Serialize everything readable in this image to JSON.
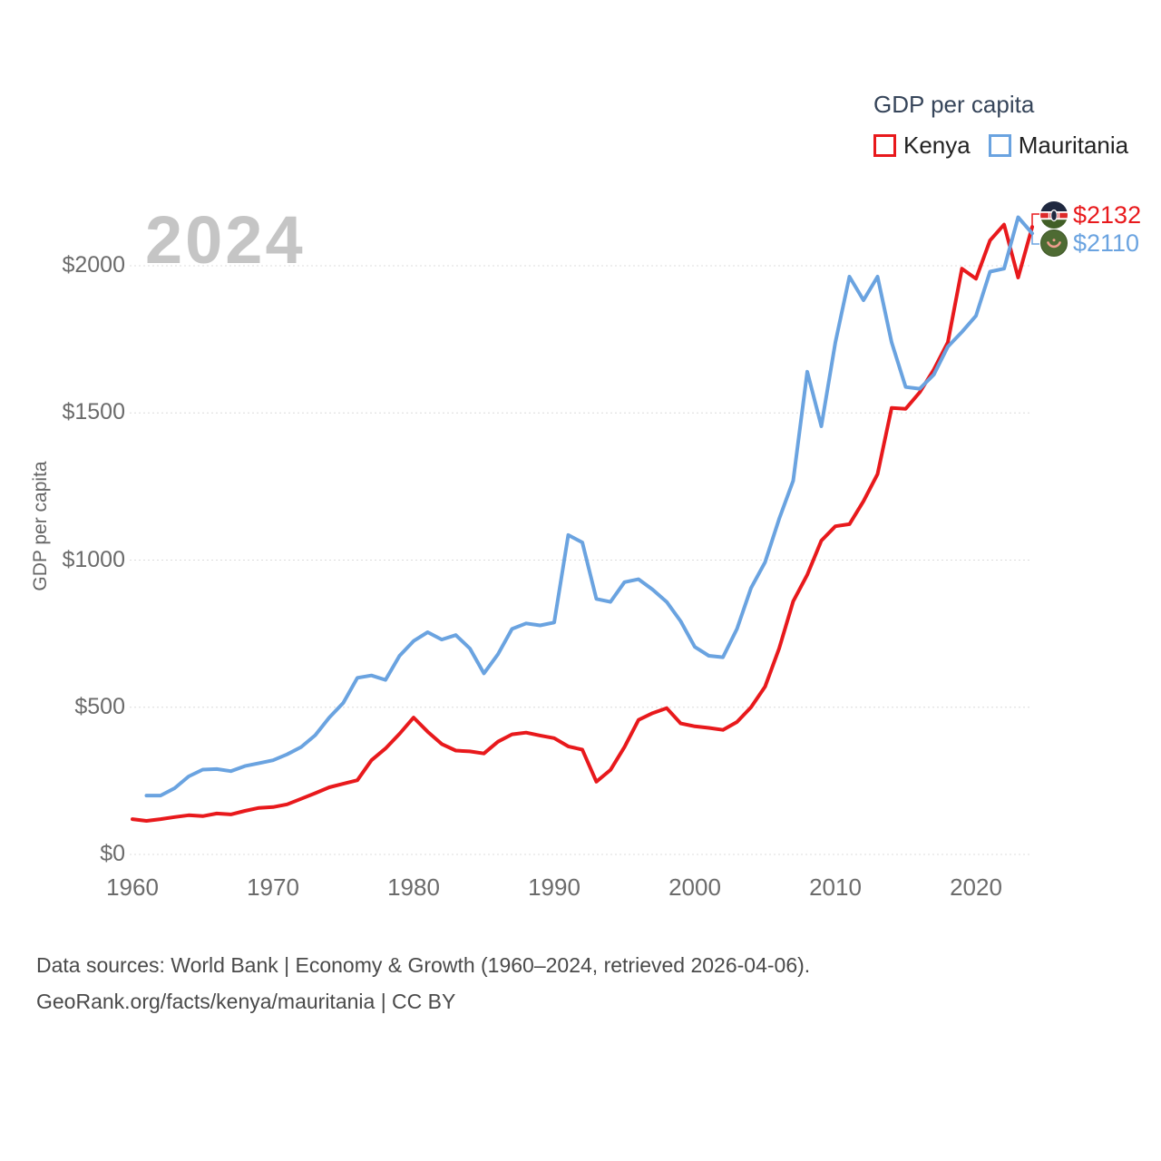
{
  "watermark": "2024",
  "y_axis_title": "GDP per capita",
  "legend": {
    "title": "GDP per capita"
  },
  "caption": {
    "line1": "Data sources: World Bank | Economy & Growth (1960–2024, retrieved 2026-04-06).",
    "line2": "GeoRank.org/facts/kenya/mauritania | CC BY"
  },
  "chart_data": {
    "type": "line",
    "title": "GDP per capita",
    "ylabel": "GDP per capita",
    "xlim": [
      1960,
      2024
    ],
    "ylim": [
      0,
      2200
    ],
    "grid": true,
    "legend_position": "top-right",
    "y_ticks": [
      {
        "value": 0,
        "label": "$0"
      },
      {
        "value": 500,
        "label": "$500"
      },
      {
        "value": 1000,
        "label": "$1000"
      },
      {
        "value": 1500,
        "label": "$1500"
      },
      {
        "value": 2000,
        "label": "$2000"
      }
    ],
    "x_ticks": [
      {
        "value": 1960,
        "label": "1960"
      },
      {
        "value": 1970,
        "label": "1970"
      },
      {
        "value": 1980,
        "label": "1980"
      },
      {
        "value": 1990,
        "label": "1990"
      },
      {
        "value": 2000,
        "label": "2000"
      },
      {
        "value": 2010,
        "label": "2010"
      },
      {
        "value": 2020,
        "label": "2020"
      }
    ],
    "series": [
      {
        "name": "Kenya",
        "color": "#e8191c",
        "flag": "kenya",
        "start_year": 1960,
        "end_year": 2024,
        "end_label": "$2132",
        "end_value": 2132,
        "values": [
          120,
          114,
          120,
          127,
          133,
          130,
          139,
          136,
          148,
          158,
          161,
          170,
          189,
          208,
          228,
          240,
          252,
          320,
          360,
          410,
          465,
          417,
          375,
          353,
          350,
          343,
          383,
          408,
          414,
          404,
          395,
          367,
          356,
          247,
          287,
          365,
          457,
          480,
          497,
          445,
          435,
          430,
          423,
          450,
          500,
          570,
          700,
          860,
          950,
          1066,
          1115,
          1122,
          1200,
          1292,
          1517,
          1514,
          1570,
          1647,
          1740,
          1990,
          1956,
          2086,
          2140,
          1960,
          2132
        ]
      },
      {
        "name": "Mauritania",
        "color": "#6aa3e0",
        "flag": "mauritania",
        "start_year": 1961,
        "end_year": 2024,
        "end_label": "$2110",
        "end_value": 2110,
        "values": [
          200,
          200,
          225,
          265,
          288,
          290,
          283,
          300,
          310,
          320,
          340,
          365,
          405,
          465,
          515,
          600,
          608,
          593,
          675,
          725,
          755,
          730,
          745,
          700,
          615,
          680,
          766,
          785,
          778,
          788,
          1085,
          1060,
          868,
          858,
          925,
          935,
          900,
          858,
          792,
          705,
          675,
          670,
          766,
          905,
          993,
          1140,
          1270,
          1640,
          1455,
          1740,
          1963,
          1883,
          1963,
          1740,
          1588,
          1582,
          1630,
          1725,
          1775,
          1830,
          1980,
          1990,
          2165,
          2110
        ]
      }
    ]
  }
}
